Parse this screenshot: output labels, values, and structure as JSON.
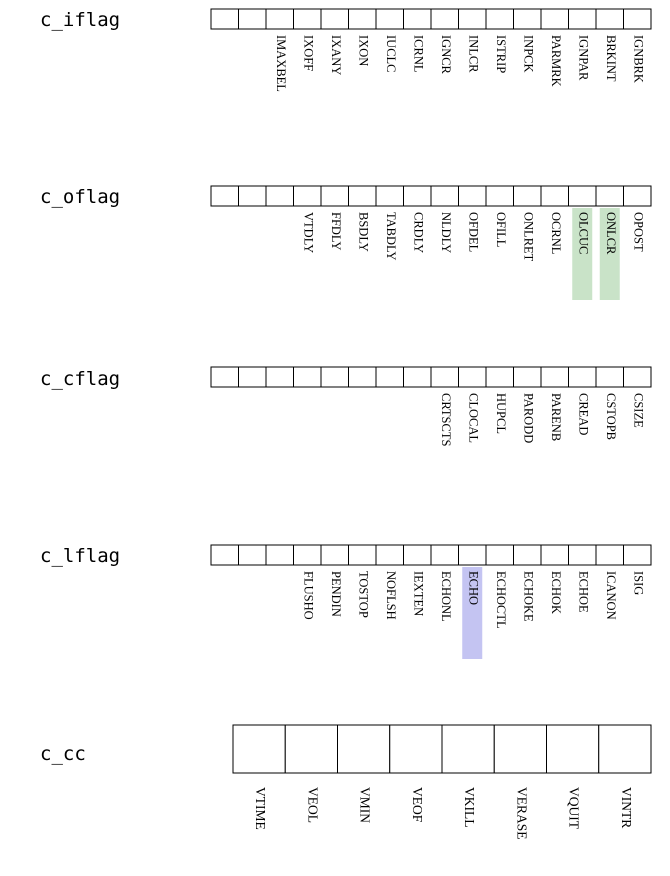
{
  "colors": {
    "green_highlight": "#c9e3c8",
    "blue_highlight": "#c4c4f2",
    "box_stroke": "#000000"
  },
  "registers": [
    {
      "name": "c_iflag",
      "cells": 16,
      "flags": [
        "IGNBRK",
        "BRKINT",
        "IGNPAR",
        "PARMRK",
        "INPCK",
        "ISTRIP",
        "INLCR",
        "IGNCR",
        "ICRNL",
        "IUCLC",
        "IXON",
        "IXANY",
        "IXOFF",
        "IMAXBEL"
      ],
      "highlight": {}
    },
    {
      "name": "c_oflag",
      "cells": 16,
      "flags": [
        "OPOST",
        "ONLCR",
        "OLCUC",
        "OCRNL",
        "ONLRET",
        "OFILL",
        "OFDEL",
        "NLDLY",
        "CRDLY",
        "TABDLY",
        "BSDLY",
        "FFDLY",
        "VTDLY"
      ],
      "highlight": {
        "ONLCR": "green",
        "OLCUC": "green"
      }
    },
    {
      "name": "c_cflag",
      "cells": 16,
      "flags": [
        "CSIZE",
        "CSTOPB",
        "CREAD",
        "PARENB",
        "PARODD",
        "HUPCL",
        "CLOCAL",
        "CRTSCTS"
      ],
      "highlight": {}
    },
    {
      "name": "c_lflag",
      "cells": 16,
      "flags": [
        "ISIG",
        "ICANON",
        "ECHOE",
        "ECHOK",
        "ECHOKE",
        "ECHOCTL",
        "ECHO",
        "ECHONL",
        "IEXTEN",
        "NOFLSH",
        "TOSTOP",
        "PENDIN",
        "FLUSHO"
      ],
      "highlight": {
        "ECHO": "blue"
      }
    }
  ],
  "cc": {
    "name": "c_cc",
    "cells": 8,
    "entries": [
      "VINTR",
      "VQUIT",
      "VERASE",
      "VKILL",
      "VEOF",
      "VMIN",
      "VEOL",
      "VTIME"
    ]
  }
}
